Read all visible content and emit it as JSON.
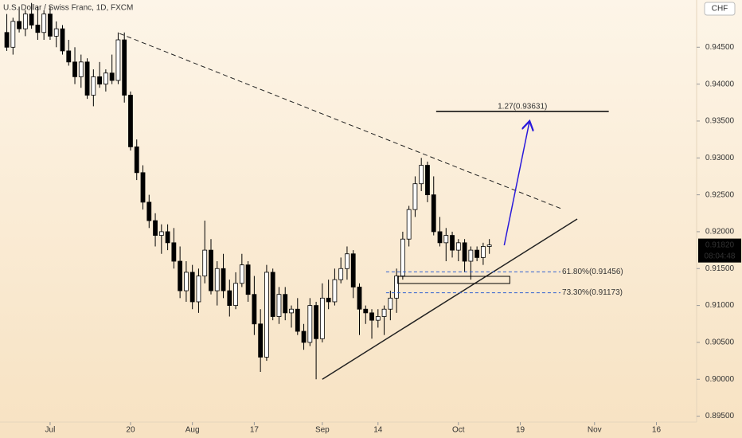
{
  "chart_data": {
    "type": "candlestick",
    "title": "U.S. Dollar / Swiss Franc, 1D, FXCM",
    "currency": "CHF",
    "countdown": "08:04:48",
    "last_price": {
      "value": 0.9182,
      "label": "0.91820"
    },
    "xlim": [
      -8.1,
      104.5
    ],
    "ylim": [
      0.8942,
      0.9514
    ],
    "xticks": [
      {
        "value": 0,
        "label": "Jul"
      },
      {
        "value": 13,
        "label": "20"
      },
      {
        "value": 23,
        "label": "Aug"
      },
      {
        "value": 33,
        "label": "17"
      },
      {
        "value": 44,
        "label": "Sep"
      },
      {
        "value": 53,
        "label": "14"
      },
      {
        "value": 66,
        "label": "Oct"
      },
      {
        "value": 76,
        "label": "19"
      },
      {
        "value": 88,
        "label": "Nov"
      },
      {
        "value": 98,
        "label": "16"
      }
    ],
    "yticks": [
      {
        "value": 0.895,
        "label": "0.89500"
      },
      {
        "value": 0.9,
        "label": "0.90000"
      },
      {
        "value": 0.905,
        "label": "0.90500"
      },
      {
        "value": 0.91,
        "label": "0.91000"
      },
      {
        "value": 0.915,
        "label": "0.91500"
      },
      {
        "value": 0.92,
        "label": "0.92000"
      },
      {
        "value": 0.925,
        "label": "0.92500"
      },
      {
        "value": 0.93,
        "label": "0.93000"
      },
      {
        "value": 0.935,
        "label": "0.93500"
      },
      {
        "value": 0.94,
        "label": "0.94000"
      },
      {
        "value": 0.945,
        "label": "0.94500"
      }
    ],
    "up_color": "#ffffff",
    "down_color": "#000000",
    "x": [
      -7,
      -6,
      -5,
      -4,
      -3,
      -2,
      -1,
      0,
      1,
      2,
      3,
      4,
      5,
      6,
      7,
      8,
      9,
      10,
      11,
      12,
      13,
      14,
      15,
      16,
      17,
      18,
      19,
      20,
      21,
      22,
      23,
      24,
      25,
      26,
      27,
      28,
      29,
      30,
      31,
      32,
      33,
      34,
      35,
      36,
      37,
      38,
      39,
      40,
      41,
      42,
      43,
      44,
      45,
      46,
      47,
      48,
      49,
      50,
      51,
      52,
      53,
      54,
      55,
      56,
      57,
      58,
      59,
      60,
      61,
      62,
      63,
      64,
      65,
      66,
      67,
      68,
      69,
      70,
      71
    ],
    "open": [
      0.947,
      0.945,
      0.9485,
      0.9475,
      0.9495,
      0.948,
      0.947,
      0.9495,
      0.9465,
      0.9475,
      0.9445,
      0.943,
      0.941,
      0.943,
      0.9385,
      0.941,
      0.94,
      0.9415,
      0.9405,
      0.946,
      0.9385,
      0.9315,
      0.928,
      0.924,
      0.9215,
      0.9195,
      0.92,
      0.9185,
      0.916,
      0.912,
      0.9145,
      0.9105,
      0.914,
      0.9175,
      0.912,
      0.915,
      0.912,
      0.91,
      0.913,
      0.9155,
      0.9115,
      0.9075,
      0.903,
      0.9145,
      0.9085,
      0.9115,
      0.909,
      0.9095,
      0.9065,
      0.905,
      0.91,
      0.9055,
      0.911,
      0.9105,
      0.9135,
      0.915,
      0.917,
      0.9125,
      0.9095,
      0.909,
      0.908,
      0.9085,
      0.9095,
      0.911,
      0.914,
      0.919,
      0.923,
      0.9265,
      0.929,
      0.925,
      0.92,
      0.9185,
      0.9195,
      0.9175,
      0.9185,
      0.916,
      0.9175,
      0.9165,
      0.918
    ],
    "high": [
      0.9495,
      0.949,
      0.9505,
      0.95,
      0.951,
      0.9505,
      0.95,
      0.9505,
      0.9485,
      0.948,
      0.946,
      0.945,
      0.944,
      0.9435,
      0.942,
      0.943,
      0.942,
      0.944,
      0.947,
      0.947,
      0.939,
      0.9325,
      0.929,
      0.925,
      0.9225,
      0.921,
      0.921,
      0.9205,
      0.918,
      0.916,
      0.9155,
      0.915,
      0.9215,
      0.919,
      0.916,
      0.917,
      0.9135,
      0.9145,
      0.917,
      0.916,
      0.914,
      0.9095,
      0.9155,
      0.915,
      0.9125,
      0.9125,
      0.91,
      0.911,
      0.9075,
      0.911,
      0.9105,
      0.913,
      0.9135,
      0.915,
      0.9165,
      0.918,
      0.9175,
      0.913,
      0.91,
      0.9095,
      0.9095,
      0.91,
      0.912,
      0.915,
      0.92,
      0.9235,
      0.9275,
      0.93,
      0.9295,
      0.9275,
      0.922,
      0.9205,
      0.92,
      0.919,
      0.919,
      0.918,
      0.918,
      0.9185,
      0.919
    ],
    "low": [
      0.9445,
      0.944,
      0.947,
      0.9465,
      0.9475,
      0.946,
      0.946,
      0.946,
      0.945,
      0.944,
      0.9425,
      0.94,
      0.9395,
      0.938,
      0.937,
      0.9395,
      0.939,
      0.94,
      0.94,
      0.9375,
      0.931,
      0.927,
      0.923,
      0.9205,
      0.918,
      0.917,
      0.9175,
      0.915,
      0.911,
      0.9105,
      0.9095,
      0.909,
      0.913,
      0.9115,
      0.91,
      0.911,
      0.9085,
      0.9095,
      0.9125,
      0.9105,
      0.906,
      0.901,
      0.9025,
      0.908,
      0.9075,
      0.908,
      0.907,
      0.906,
      0.904,
      0.9045,
      0.9,
      0.905,
      0.9095,
      0.91,
      0.913,
      0.9135,
      0.911,
      0.906,
      0.9075,
      0.9055,
      0.907,
      0.906,
      0.908,
      0.909,
      0.9135,
      0.918,
      0.922,
      0.9255,
      0.924,
      0.9195,
      0.918,
      0.916,
      0.9165,
      0.916,
      0.9145,
      0.9135,
      0.916,
      0.9155,
      0.917
    ],
    "close": [
      0.945,
      0.9485,
      0.9475,
      0.9495,
      0.948,
      0.947,
      0.9495,
      0.9465,
      0.9475,
      0.9445,
      0.943,
      0.941,
      0.943,
      0.9385,
      0.941,
      0.94,
      0.9415,
      0.9405,
      0.946,
      0.9385,
      0.9315,
      0.928,
      0.924,
      0.9215,
      0.9195,
      0.92,
      0.9185,
      0.916,
      0.912,
      0.9145,
      0.9105,
      0.914,
      0.9175,
      0.912,
      0.915,
      0.912,
      0.91,
      0.913,
      0.9155,
      0.9115,
      0.9075,
      0.903,
      0.9145,
      0.9085,
      0.9115,
      0.909,
      0.9095,
      0.9065,
      0.905,
      0.91,
      0.9055,
      0.911,
      0.9105,
      0.9135,
      0.915,
      0.917,
      0.9125,
      0.9095,
      0.909,
      0.908,
      0.9085,
      0.9095,
      0.911,
      0.914,
      0.919,
      0.923,
      0.9265,
      0.929,
      0.925,
      0.92,
      0.9185,
      0.9195,
      0.9175,
      0.9185,
      0.916,
      0.9175,
      0.9165,
      0.918,
      0.9182
    ],
    "trend_lines": [
      {
        "x": [
          11.2,
          82.6
        ],
        "y": [
          0.94687,
          0.92313
        ],
        "style": "dashed"
      },
      {
        "x": [
          44,
          85.2
        ],
        "y": [
          0.9,
          0.92172
        ],
        "style": "solid"
      }
    ],
    "fib_levels": [
      {
        "x": [
          54.3,
          82.5
        ],
        "value": 0.91456,
        "label": "61.80%(0.91456)"
      },
      {
        "x": [
          54.3,
          82.5
        ],
        "value": 0.91173,
        "label": "73.30%(0.91173)"
      }
    ],
    "target": {
      "x": [
        62.4,
        90.3
      ],
      "value": 0.93631,
      "label": "1.27(0.93631)"
    },
    "arrow": {
      "x": [
        73.4,
        77.5
      ],
      "y": [
        0.91816,
        0.935
      ]
    },
    "zone": {
      "x": [
        56.2,
        74.3
      ],
      "y": [
        0.91395,
        0.91298
      ]
    }
  }
}
